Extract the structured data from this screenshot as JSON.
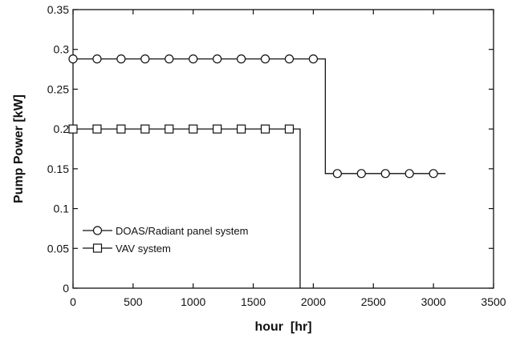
{
  "chart_data": {
    "type": "line",
    "title": "",
    "xlabel": "hour  [hr]",
    "ylabel": "Pump Power [kW]",
    "xlim": [
      0,
      3500
    ],
    "ylim": [
      0,
      0.35
    ],
    "x_ticks": [
      0,
      500,
      1000,
      1500,
      2000,
      2500,
      3000,
      3500
    ],
    "y_ticks": [
      0,
      0.05,
      0.1,
      0.15,
      0.2,
      0.25,
      0.3,
      0.35
    ],
    "x_tick_labels": [
      "0",
      "500",
      "1000",
      "1500",
      "2000",
      "2500",
      "3000",
      "3500"
    ],
    "y_tick_labels": [
      "0",
      "0.05",
      "0.1",
      "0.15",
      "0.2",
      "0.25",
      "0.3",
      "0.35"
    ],
    "grid": false,
    "legend_position": "bottom-left",
    "series": [
      {
        "name": "DOAS/Radiant panel system",
        "marker": "circle",
        "line": [
          [
            0,
            0.288
          ],
          [
            2100,
            0.288
          ],
          [
            2100,
            0.144
          ],
          [
            3100,
            0.144
          ]
        ],
        "points": [
          [
            0,
            0.288
          ],
          [
            200,
            0.288
          ],
          [
            400,
            0.288
          ],
          [
            600,
            0.288
          ],
          [
            800,
            0.288
          ],
          [
            1000,
            0.288
          ],
          [
            1200,
            0.288
          ],
          [
            1400,
            0.288
          ],
          [
            1600,
            0.288
          ],
          [
            1800,
            0.288
          ],
          [
            2000,
            0.288
          ],
          [
            2200,
            0.144
          ],
          [
            2400,
            0.144
          ],
          [
            2600,
            0.144
          ],
          [
            2800,
            0.144
          ],
          [
            3000,
            0.144
          ]
        ]
      },
      {
        "name": "VAV system",
        "marker": "square",
        "line": [
          [
            0,
            0.2
          ],
          [
            1890,
            0.2
          ],
          [
            1890,
            0
          ]
        ],
        "points": [
          [
            0,
            0.2
          ],
          [
            200,
            0.2
          ],
          [
            400,
            0.2
          ],
          [
            600,
            0.2
          ],
          [
            800,
            0.2
          ],
          [
            1000,
            0.2
          ],
          [
            1200,
            0.2
          ],
          [
            1400,
            0.2
          ],
          [
            1600,
            0.2
          ],
          [
            1800,
            0.2
          ]
        ]
      }
    ]
  }
}
